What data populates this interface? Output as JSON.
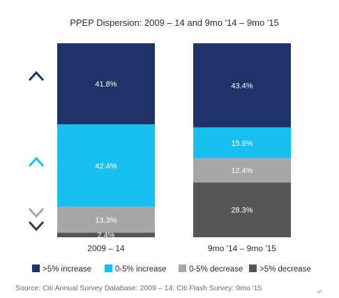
{
  "chart_data": {
    "type": "bar",
    "stacked": true,
    "title": "PPEP Dispersion: 2009 – 14 and 9mo '14 – 9mo '15",
    "categories": [
      "2009 – 14",
      "9mo '14 – 9mo '15"
    ],
    "series": [
      {
        "name": ">5% increase",
        "values": [
          41.8,
          43.4
        ],
        "labels": [
          "41.8%",
          "43.4%"
        ],
        "color": "#1f3369"
      },
      {
        "name": "0-5% increase",
        "values": [
          42.4,
          15.9
        ],
        "labels": [
          "42.4%",
          "15.9%"
        ],
        "color": "#19bff0"
      },
      {
        "name": "0-5% decrease",
        "values": [
          13.3,
          12.4
        ],
        "labels": [
          "13.3%",
          "12.4%"
        ],
        "color": "#a6a6a8"
      },
      {
        "name": ">5% decrease",
        "values": [
          2.4,
          28.3
        ],
        "labels": [
          "2.4%",
          "28.3%"
        ],
        "color": "#565656"
      }
    ],
    "ylim": [
      0,
      100
    ],
    "legend_position": "bottom",
    "grid": false,
    "source": "Source: Citi Annual Survey Database: 2009 – 14; Citi Flash Survey: 9mo '15"
  },
  "trailing_mark": "↵"
}
